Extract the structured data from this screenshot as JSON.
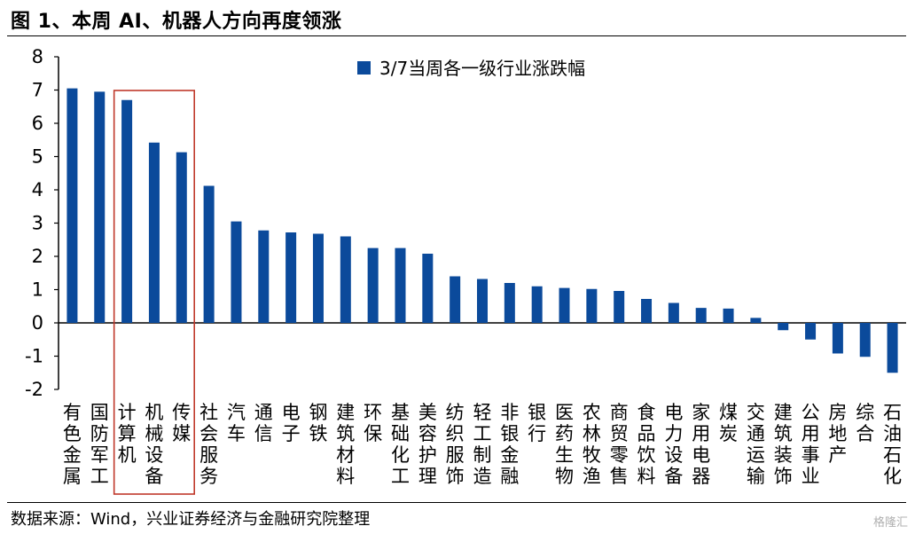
{
  "title": "图 1、本周 AI、机器人方向再度领涨",
  "source": "数据来源：Wind，兴业证券经济与金融研究院整理",
  "watermark": "格隆汇",
  "colors": {
    "bar": "#0b4a9b",
    "highlight": "#c0392b",
    "axis": "#000000"
  },
  "chart_data": {
    "type": "bar",
    "legend_position": "top-center",
    "grid": false,
    "ylim": [
      -2,
      8
    ],
    "yticks": [
      8,
      7,
      6,
      5,
      4,
      3,
      2,
      1,
      0,
      -1,
      -2
    ],
    "categories": [
      "有色金属",
      "国防军工",
      "计算机",
      "机械设备",
      "传媒",
      "社会服务",
      "汽车",
      "通信",
      "电子",
      "钢铁",
      "建筑材料",
      "环保",
      "基础化工",
      "美容护理",
      "纺织服饰",
      "轻工制造",
      "非银金融",
      "银行",
      "医药生物",
      "农林牧渔",
      "商贸零售",
      "食品饮料",
      "电力设备",
      "家用电器",
      "煤炭",
      "交通运输",
      "建筑装饰",
      "公用事业",
      "房地产",
      "综合",
      "石油石化"
    ],
    "series": [
      {
        "name": "3/7当周各一级行业涨跌幅",
        "values": [
          7.05,
          6.95,
          6.7,
          5.42,
          5.13,
          4.12,
          3.05,
          2.78,
          2.72,
          2.68,
          2.6,
          2.25,
          2.25,
          2.08,
          1.4,
          1.32,
          1.2,
          1.1,
          1.05,
          1.02,
          0.96,
          0.72,
          0.6,
          0.45,
          0.43,
          0.15,
          -0.22,
          -0.5,
          -0.92,
          -1.02,
          -1.5
        ]
      }
    ],
    "highlight_categories": [
      "计算机",
      "机械设备",
      "传媒"
    ]
  }
}
